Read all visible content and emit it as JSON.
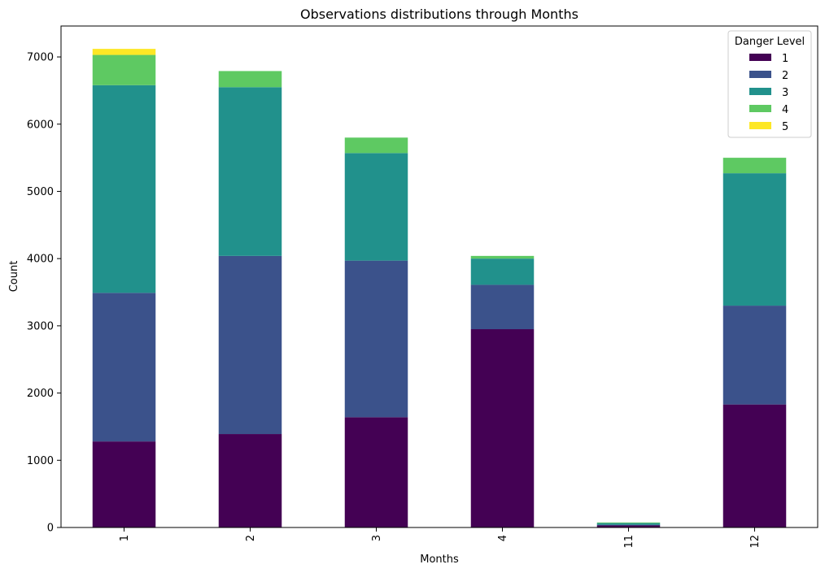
{
  "chart_data": {
    "type": "bar",
    "stacked": true,
    "title": "Observations distributions through Months",
    "xlabel": "Months",
    "ylabel": "Count",
    "categories": [
      "1",
      "2",
      "3",
      "4",
      "11",
      "12"
    ],
    "ylim": [
      0,
      7460
    ],
    "yticks": [
      0,
      1000,
      2000,
      3000,
      4000,
      5000,
      6000,
      7000
    ],
    "grid": false,
    "legend": {
      "title": "Danger Level",
      "placement": "top-right"
    },
    "series": [
      {
        "name": "1",
        "color": "#440154",
        "values": [
          1280,
          1390,
          1640,
          2950,
          30,
          1830
        ]
      },
      {
        "name": "2",
        "color": "#3b528b",
        "values": [
          2210,
          2650,
          2330,
          660,
          10,
          1470
        ]
      },
      {
        "name": "3",
        "color": "#21918c",
        "values": [
          3090,
          2510,
          1600,
          390,
          25,
          1970
        ]
      },
      {
        "name": "4",
        "color": "#5ec962",
        "values": [
          450,
          240,
          230,
          40,
          10,
          230
        ]
      },
      {
        "name": "5",
        "color": "#fde725",
        "values": [
          90,
          0,
          0,
          0,
          0,
          0
        ]
      }
    ]
  }
}
